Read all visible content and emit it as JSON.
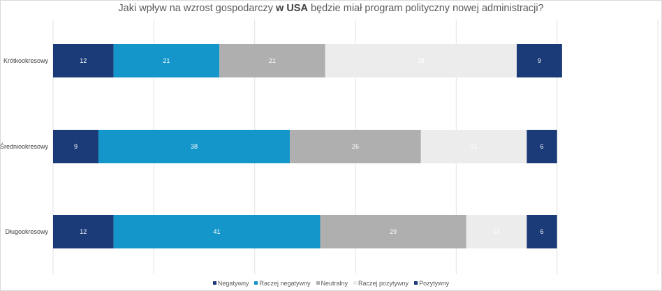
{
  "chart_data": {
    "type": "bar",
    "orientation": "horizontal",
    "stacked": true,
    "title": {
      "before": "Jaki wpływ na wzrost gospodarczy ",
      "bold": "w USA",
      "after": " będzie miał program polityczny nowej administracji?"
    },
    "categories": [
      "Krótkookresowy",
      "Średniookresowy",
      "Długookresowy"
    ],
    "series": [
      {
        "name": "Negatywny",
        "color": "#1b3a78",
        "label_color": "#ffffff",
        "values": [
          12,
          9,
          12
        ]
      },
      {
        "name": "Raczej negatywny",
        "color": "#1496cb",
        "label_color": "#ffffff",
        "values": [
          21,
          38,
          41
        ]
      },
      {
        "name": "Neutralny",
        "color": "#afafaf",
        "label_color": "#ffffff",
        "values": [
          21,
          26,
          29
        ]
      },
      {
        "name": "Raczej pozytywny",
        "color": "#ececec",
        "label_color": "#ffffff",
        "values": [
          38,
          21,
          12
        ]
      },
      {
        "name": "Pozytywny",
        "color": "#1b3a78",
        "label_color": "#ffffff",
        "values": [
          9,
          6,
          6
        ]
      }
    ],
    "xlim": [
      0,
      120
    ],
    "x_gridline_step": 20,
    "xlabel": "",
    "ylabel": "",
    "grid": true,
    "legend_position": "bottom"
  }
}
